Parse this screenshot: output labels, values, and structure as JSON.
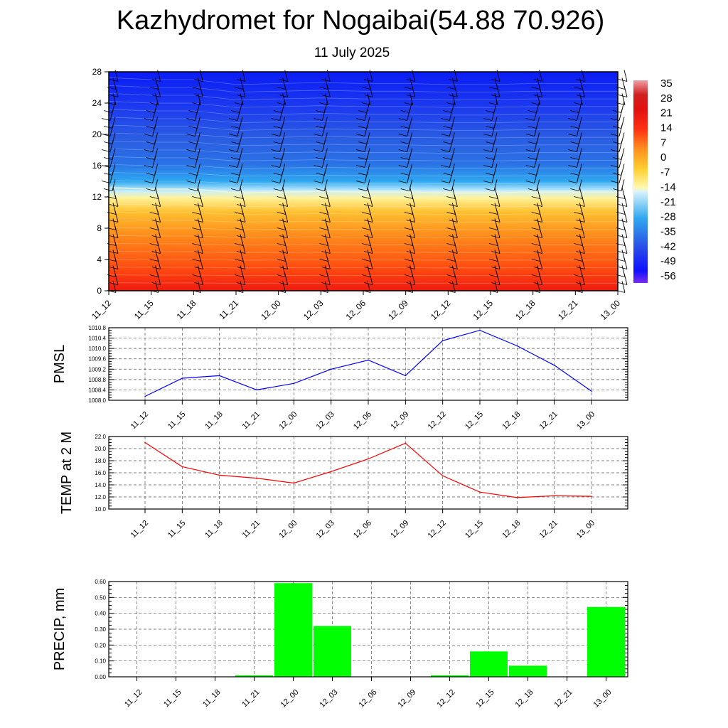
{
  "title": "Kazhydromet for Nogaibai(54.88 70.926)",
  "subtitle": "11 July 2025",
  "chart_data": [
    {
      "type": "heatmap",
      "title": "",
      "ylim": [
        0,
        28
      ],
      "y_ticks": [
        "0",
        "4",
        "8",
        "12",
        "16",
        "20",
        "24",
        "28"
      ],
      "x_ticks": [
        "11_12",
        "11_15",
        "11_18",
        "11_21",
        "12_00",
        "12_03",
        "12_06",
        "12_09",
        "12_12",
        "12_15",
        "12_18",
        "12_21",
        "13_00"
      ],
      "colorbar_labels": [
        "35",
        "28",
        "21",
        "14",
        "7",
        "0",
        "-7",
        "-14",
        "-21",
        "-28",
        "-35",
        "-42",
        "-49",
        "-56"
      ],
      "freezing_level_km": [
        13.2,
        13.0,
        13.0,
        12.5,
        12.6,
        12.7,
        12.6,
        12.6,
        12.5,
        12.5,
        12.6,
        12.6,
        12.6
      ],
      "wind_barbs": true
    },
    {
      "type": "line",
      "ylabel": "PMSL",
      "x": [
        "11_12",
        "11_15",
        "11_18",
        "11_21",
        "12_00",
        "12_03",
        "12_06",
        "12_09",
        "12_12",
        "12_15",
        "12_18",
        "12_21",
        "13_00"
      ],
      "values": [
        1008.15,
        1008.85,
        1008.95,
        1008.4,
        1008.65,
        1009.2,
        1009.55,
        1008.95,
        1010.3,
        1010.7,
        1010.1,
        1009.35,
        1008.35
      ],
      "ylim": [
        1008.0,
        1010.8
      ],
      "y_ticks": [
        "1008.0",
        "1008.4",
        "1008.8",
        "1009.2",
        "1009.6",
        "1010.0",
        "1010.4",
        "1010.8"
      ],
      "color": "#0000ff",
      "grid": true
    },
    {
      "type": "line",
      "ylabel": "TEMP at 2 M",
      "x": [
        "11_12",
        "11_15",
        "11_18",
        "11_21",
        "12_00",
        "12_03",
        "12_06",
        "12_09",
        "12_12",
        "12_15",
        "12_18",
        "12_21",
        "13_00"
      ],
      "values": [
        21.0,
        17.0,
        15.6,
        15.1,
        14.3,
        16.2,
        18.3,
        20.9,
        15.5,
        12.8,
        11.9,
        12.2,
        12.1
      ],
      "ylim": [
        10.0,
        22.0
      ],
      "y_ticks": [
        "10.0",
        "12.0",
        "14.0",
        "16.0",
        "18.0",
        "20.0",
        "22.0"
      ],
      "color": "#ff0000",
      "grid": true
    },
    {
      "type": "bar",
      "ylabel": "PRECIP, mm",
      "categories": [
        "11_12",
        "11_15",
        "11_18",
        "11_21",
        "12_00",
        "12_03",
        "12_06",
        "12_09",
        "12_12",
        "12_15",
        "12_18",
        "12_21",
        "13_00"
      ],
      "values": [
        0.0,
        0.0,
        0.0,
        0.01,
        0.59,
        0.32,
        0.0,
        0.0,
        0.01,
        0.16,
        0.07,
        0.0,
        0.44
      ],
      "ylim": [
        0.0,
        0.6
      ],
      "y_ticks": [
        "0.00",
        "0.10",
        "0.20",
        "0.30",
        "0.40",
        "0.50",
        "0.60"
      ],
      "color": "#00ff00",
      "grid": true
    }
  ]
}
